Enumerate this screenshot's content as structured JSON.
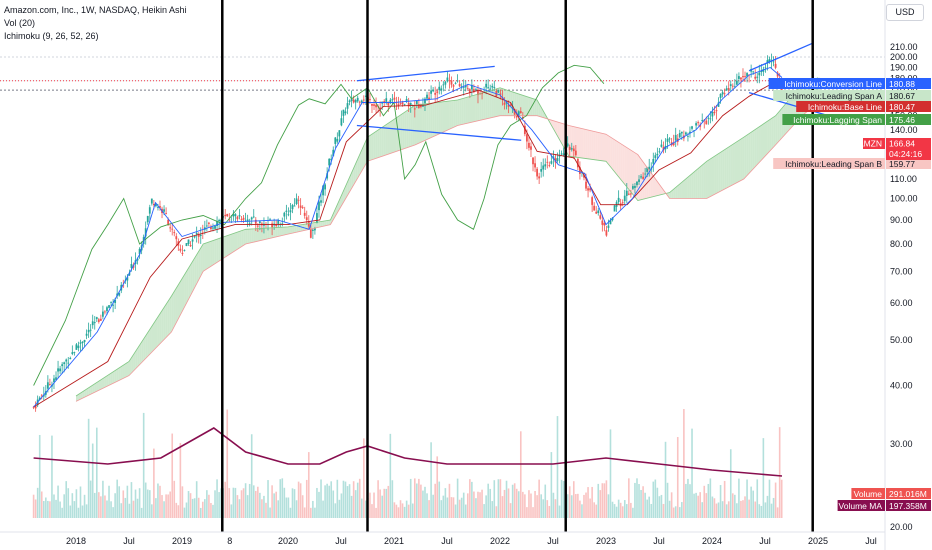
{
  "legend": {
    "title": "Amazon.com, Inc., 1W, NASDAQ, Heikin Ashi",
    "vol": "Vol (20)",
    "ichimoku": "Ichimoku (9, 26, 52, 26)"
  },
  "currency_button": "USD",
  "colors": {
    "up": "#26a69a",
    "down": "#ef5350",
    "conversion": "#2962ff",
    "base": "#b71c1c",
    "lagging": "#43a047",
    "cloud_up": "#a5d6a7",
    "cloud_down": "#f8c6c3",
    "volume_ma": "#880e4f",
    "trendline": "#2962ff",
    "vline": "#000000"
  },
  "chart_data": {
    "type": "candlestick",
    "y_axis": {
      "scale": "log",
      "ticks": [
        20,
        30,
        40,
        50,
        60,
        70,
        80,
        90,
        100,
        110,
        120,
        130,
        140,
        150,
        160,
        170,
        180,
        190,
        200,
        210
      ]
    },
    "x_axis": {
      "ticks": [
        "2018",
        "Jul",
        "2019",
        "8",
        "2020",
        "Jul",
        "2021",
        "Jul",
        "2022",
        "Jul",
        "2023",
        "Jul",
        "2024",
        "Jul",
        "2025",
        "Jul"
      ]
    },
    "price_path": [
      [
        2017.6,
        36
      ],
      [
        2017.9,
        45
      ],
      [
        2018.2,
        55
      ],
      [
        2018.45,
        65
      ],
      [
        2018.6,
        78
      ],
      [
        2018.72,
        100
      ],
      [
        2018.85,
        92
      ],
      [
        2018.95,
        80
      ],
      [
        2019.0,
        77
      ],
      [
        2019.15,
        84
      ],
      [
        2019.35,
        90
      ],
      [
        2019.55,
        92
      ],
      [
        2019.75,
        88
      ],
      [
        2019.95,
        90
      ],
      [
        2020.1,
        101
      ],
      [
        2020.22,
        82
      ],
      [
        2020.4,
        122
      ],
      [
        2020.55,
        158
      ],
      [
        2020.7,
        165
      ],
      [
        2020.85,
        158
      ],
      [
        2021.0,
        162
      ],
      [
        2021.2,
        157
      ],
      [
        2021.35,
        167
      ],
      [
        2021.5,
        180
      ],
      [
        2021.65,
        172
      ],
      [
        2021.8,
        169
      ],
      [
        2021.92,
        175
      ],
      [
        2022.05,
        158
      ],
      [
        2022.2,
        150
      ],
      [
        2022.35,
        112
      ],
      [
        2022.5,
        120
      ],
      [
        2022.65,
        131
      ],
      [
        2022.78,
        112
      ],
      [
        2022.9,
        95
      ],
      [
        2023.0,
        85
      ],
      [
        2023.1,
        97
      ],
      [
        2023.25,
        104
      ],
      [
        2023.4,
        116
      ],
      [
        2023.55,
        130
      ],
      [
        2023.7,
        135
      ],
      [
        2023.85,
        143
      ],
      [
        2024.0,
        150
      ],
      [
        2024.12,
        170
      ],
      [
        2024.25,
        178
      ],
      [
        2024.35,
        185
      ],
      [
        2024.45,
        183
      ],
      [
        2024.53,
        194
      ],
      [
        2024.58,
        199
      ],
      [
        2024.62,
        183
      ],
      [
        2024.66,
        166.84
      ]
    ],
    "conversion_line": [
      [
        2017.6,
        36
      ],
      [
        2018.2,
        52
      ],
      [
        2018.6,
        76
      ],
      [
        2018.75,
        98
      ],
      [
        2019.0,
        83
      ],
      [
        2019.4,
        89
      ],
      [
        2019.9,
        90
      ],
      [
        2020.2,
        86
      ],
      [
        2020.45,
        128
      ],
      [
        2020.7,
        160
      ],
      [
        2021.0,
        160
      ],
      [
        2021.4,
        163
      ],
      [
        2021.7,
        175
      ],
      [
        2022.0,
        166
      ],
      [
        2022.3,
        140
      ],
      [
        2022.55,
        118
      ],
      [
        2022.8,
        113
      ],
      [
        2023.0,
        88
      ],
      [
        2023.25,
        100
      ],
      [
        2023.55,
        128
      ],
      [
        2023.85,
        140
      ],
      [
        2024.1,
        163
      ],
      [
        2024.35,
        183
      ],
      [
        2024.55,
        190
      ],
      [
        2024.66,
        180.88
      ]
    ],
    "base_line": [
      [
        2017.6,
        36
      ],
      [
        2018.3,
        45
      ],
      [
        2018.7,
        68
      ],
      [
        2019.0,
        82
      ],
      [
        2019.5,
        88
      ],
      [
        2020.0,
        88
      ],
      [
        2020.3,
        90
      ],
      [
        2020.55,
        132
      ],
      [
        2020.9,
        157
      ],
      [
        2021.3,
        158
      ],
      [
        2021.8,
        170
      ],
      [
        2022.1,
        160
      ],
      [
        2022.35,
        126
      ],
      [
        2022.7,
        122
      ],
      [
        2022.95,
        97
      ],
      [
        2023.2,
        97
      ],
      [
        2023.5,
        115
      ],
      [
        2023.8,
        125
      ],
      [
        2024.1,
        150
      ],
      [
        2024.35,
        165
      ],
      [
        2024.66,
        180.47
      ]
    ],
    "leading_span_a": [
      [
        2018.0,
        38
      ],
      [
        2018.5,
        45
      ],
      [
        2018.9,
        62
      ],
      [
        2019.2,
        80
      ],
      [
        2019.6,
        86
      ],
      [
        2020.0,
        87
      ],
      [
        2020.4,
        90
      ],
      [
        2020.75,
        135
      ],
      [
        2021.2,
        158
      ],
      [
        2021.6,
        162
      ],
      [
        2022.0,
        172
      ],
      [
        2022.35,
        162
      ],
      [
        2022.65,
        123
      ],
      [
        2023.0,
        120
      ],
      [
        2023.3,
        99
      ],
      [
        2023.6,
        103
      ],
      [
        2023.95,
        120
      ],
      [
        2024.3,
        135
      ],
      [
        2024.6,
        150
      ],
      [
        2024.85,
        175
      ],
      [
        2025.0,
        180.67
      ]
    ],
    "leading_span_b": [
      [
        2018.0,
        37
      ],
      [
        2018.5,
        42
      ],
      [
        2018.9,
        52
      ],
      [
        2019.2,
        70
      ],
      [
        2019.6,
        80
      ],
      [
        2020.0,
        84
      ],
      [
        2020.4,
        88
      ],
      [
        2020.75,
        120
      ],
      [
        2021.2,
        130
      ],
      [
        2021.6,
        143
      ],
      [
        2022.0,
        150
      ],
      [
        2022.35,
        150
      ],
      [
        2022.65,
        143
      ],
      [
        2023.0,
        137
      ],
      [
        2023.3,
        124
      ],
      [
        2023.6,
        100
      ],
      [
        2023.95,
        100
      ],
      [
        2024.3,
        110
      ],
      [
        2024.6,
        130
      ],
      [
        2024.85,
        150
      ],
      [
        2025.0,
        159.77
      ]
    ],
    "lagging_span": [
      [
        2017.6,
        40
      ],
      [
        2017.9,
        55
      ],
      [
        2018.15,
        78
      ],
      [
        2018.3,
        88
      ],
      [
        2018.45,
        100
      ],
      [
        2018.6,
        80
      ],
      [
        2018.8,
        87
      ],
      [
        2019.0,
        90
      ],
      [
        2019.2,
        92
      ],
      [
        2019.4,
        88
      ],
      [
        2019.6,
        100
      ],
      [
        2019.75,
        108
      ],
      [
        2019.9,
        130
      ],
      [
        2020.1,
        158
      ],
      [
        2020.2,
        163
      ],
      [
        2020.35,
        159
      ],
      [
        2020.5,
        175
      ],
      [
        2020.6,
        163
      ],
      [
        2020.75,
        172
      ],
      [
        2020.9,
        150
      ],
      [
        2021.0,
        160
      ],
      [
        2021.1,
        110
      ],
      [
        2021.2,
        118
      ],
      [
        2021.3,
        132
      ],
      [
        2021.45,
        102
      ],
      [
        2021.6,
        90
      ],
      [
        2021.75,
        86
      ],
      [
        2021.85,
        100
      ],
      [
        2021.98,
        130
      ],
      [
        2022.1,
        143
      ],
      [
        2022.25,
        150
      ],
      [
        2022.4,
        172
      ],
      [
        2022.55,
        185
      ],
      [
        2022.7,
        192
      ],
      [
        2022.85,
        190
      ],
      [
        2022.98,
        175.46
      ]
    ],
    "volume_ma_path": [
      [
        2017.6,
        30
      ],
      [
        2018.3,
        29
      ],
      [
        2018.8,
        30
      ],
      [
        2019.1,
        33
      ],
      [
        2019.3,
        35
      ],
      [
        2019.6,
        31
      ],
      [
        2020.0,
        29
      ],
      [
        2020.3,
        29
      ],
      [
        2020.55,
        31
      ],
      [
        2020.75,
        32
      ],
      [
        2021.1,
        30
      ],
      [
        2021.5,
        29
      ],
      [
        2022.0,
        29
      ],
      [
        2022.5,
        29
      ],
      [
        2023.0,
        30
      ],
      [
        2023.5,
        29
      ],
      [
        2024.0,
        28
      ],
      [
        2024.66,
        27
      ]
    ],
    "trend_lines": [
      [
        [
          2020.65,
          178
        ],
        [
          2021.95,
          191
        ]
      ],
      [
        [
          2020.65,
          143
        ],
        [
          2022.2,
          133
        ]
      ],
      [
        [
          2024.35,
          187
        ],
        [
          2024.95,
          214
        ]
      ],
      [
        [
          2024.35,
          168
        ],
        [
          2025.1,
          150
        ]
      ]
    ],
    "vertical_lines": [
      2019.38,
      2020.75,
      2022.62,
      2024.95
    ],
    "horizontal_lines": [
      200,
      178,
      170
    ],
    "labels": [
      {
        "name": "Ichimoku:Conversion Line",
        "value": "180.88",
        "color": "#2962ff"
      },
      {
        "name": "Ichimoku:Leading Span A",
        "value": "180.67",
        "color": "#a5d6a7"
      },
      {
        "name": "Ichimoku:Base Line",
        "value": "180.47",
        "color": "#d32f2f"
      },
      {
        "name": "Ichimoku:Lagging Span",
        "value": "175.46",
        "color": "#43a047"
      },
      {
        "name": "AMZN",
        "value": "166.84",
        "sub": "04:24:16",
        "color": "#f23645"
      },
      {
        "name": "Ichimoku:Leading Span B",
        "value": "159.77",
        "color": "#f8bbb8"
      },
      {
        "name": "Volume",
        "value": "291.016M",
        "color": "#ef5350"
      },
      {
        "name": "Volume MA",
        "value": "197.358M",
        "color": "#880e4f"
      }
    ]
  }
}
